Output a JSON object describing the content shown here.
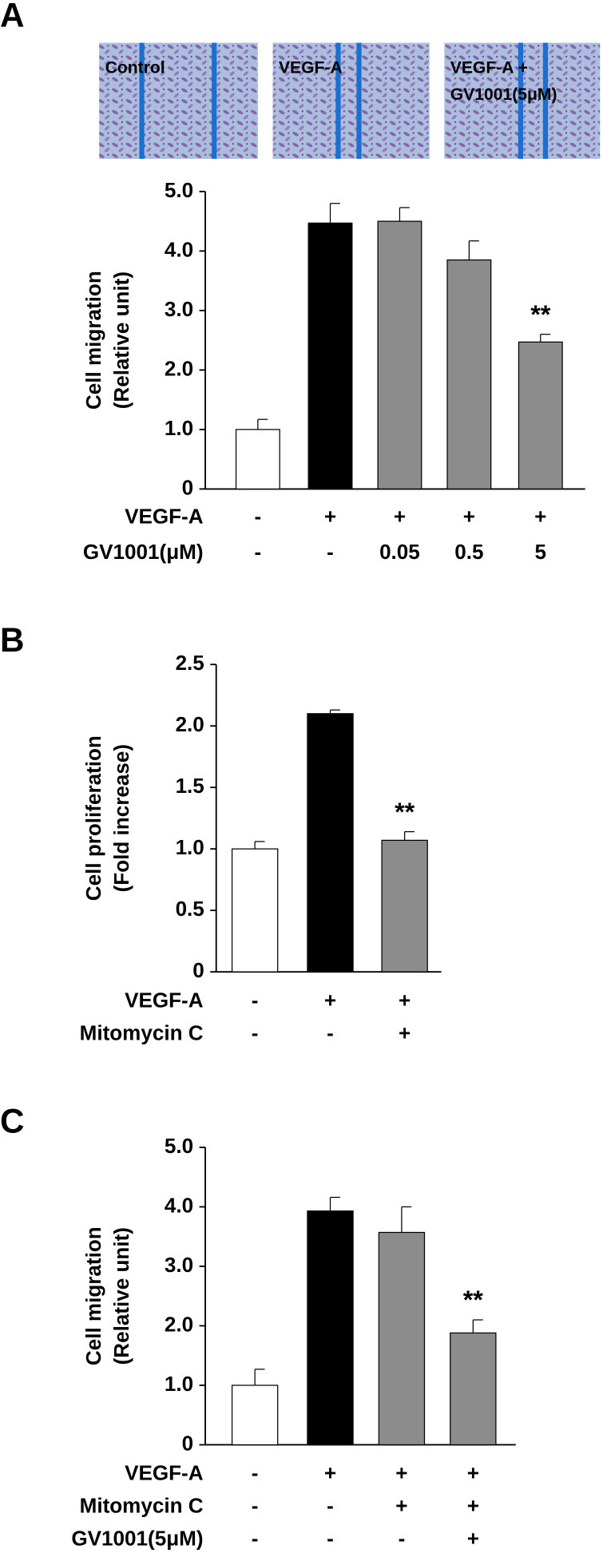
{
  "chart_data": [
    {
      "type": "bar",
      "panel_label": "A",
      "images": [
        {
          "label": [
            "Control"
          ]
        },
        {
          "label": [
            "VEGF-A"
          ]
        },
        {
          "label": [
            "VEGF-A +",
            "GV1001(5μM)"
          ]
        }
      ],
      "y_label": [
        "Cell migration",
        "(Relative unit)"
      ],
      "values": [
        1.0,
        4.47,
        4.5,
        3.85,
        2.47
      ],
      "errors": [
        0.17,
        0.33,
        0.23,
        0.32,
        0.13
      ],
      "colors": [
        "#ffffff",
        "#000000",
        "#8c8c8c",
        "#8c8c8c",
        "#8c8c8c"
      ],
      "ylim": [
        0,
        5
      ],
      "yticks": [
        0,
        {
          "value": 1,
          "label": "1.0"
        },
        {
          "value": 2,
          "label": "2.0"
        },
        {
          "value": 3,
          "label": "3.0"
        },
        {
          "value": 4,
          "label": "4.0"
        },
        {
          "value": 5,
          "label": "5.0"
        }
      ],
      "annotations": [
        {
          "index": 4,
          "text": "**"
        }
      ],
      "condition_rows": [
        {
          "label": "VEGF-A",
          "cells": [
            "-",
            "+",
            "+",
            "+",
            "+"
          ]
        },
        {
          "label": "GV1001(μM)",
          "cells": [
            "-",
            "-",
            "0.05",
            "0.5",
            "5"
          ]
        }
      ]
    },
    {
      "type": "bar",
      "panel_label": "B",
      "y_label": [
        "Cell proliferation",
        "(Fold increase)"
      ],
      "values": [
        1.0,
        2.1,
        1.07
      ],
      "errors": [
        0.06,
        0.03,
        0.07
      ],
      "colors": [
        "#ffffff",
        "#000000",
        "#8c8c8c"
      ],
      "ylim": [
        0,
        2.5
      ],
      "yticks": [
        0,
        0.5,
        {
          "value": 1,
          "label": "1.0"
        },
        1.5,
        {
          "value": 2,
          "label": "2.0"
        },
        2.5
      ],
      "annotations": [
        {
          "index": 2,
          "text": "**"
        }
      ],
      "condition_rows": [
        {
          "label": "VEGF-A",
          "cells": [
            "-",
            "+",
            "+"
          ]
        },
        {
          "label": "Mitomycin C",
          "cells": [
            "-",
            "-",
            "+"
          ]
        }
      ]
    },
    {
      "type": "bar",
      "panel_label": "C",
      "y_label": [
        "Cell migration",
        "(Relative unit)"
      ],
      "values": [
        1.0,
        3.93,
        3.57,
        1.88
      ],
      "errors": [
        0.27,
        0.23,
        0.43,
        0.22
      ],
      "colors": [
        "#ffffff",
        "#000000",
        "#8c8c8c",
        "#8c8c8c"
      ],
      "ylim": [
        0,
        5
      ],
      "yticks": [
        0,
        {
          "value": 1,
          "label": "1.0"
        },
        {
          "value": 2,
          "label": "2.0"
        },
        {
          "value": 3,
          "label": "3.0"
        },
        {
          "value": 4,
          "label": "4.0"
        },
        {
          "value": 5,
          "label": "5.0"
        }
      ],
      "annotations": [
        {
          "index": 3,
          "text": "**"
        }
      ],
      "condition_rows": [
        {
          "label": "VEGF-A",
          "cells": [
            "-",
            "+",
            "+",
            "+"
          ]
        },
        {
          "label": "Mitomycin C",
          "cells": [
            "-",
            "-",
            "+",
            "+"
          ]
        },
        {
          "label": "GV1001(5μM)",
          "cells": [
            "-",
            "-",
            "-",
            "+"
          ]
        }
      ]
    }
  ]
}
